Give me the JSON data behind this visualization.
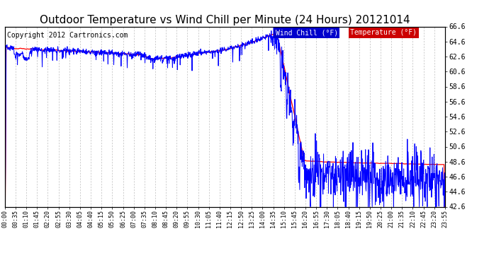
{
  "title": "Outdoor Temperature vs Wind Chill per Minute (24 Hours) 20121014",
  "copyright": "Copyright 2012 Cartronics.com",
  "legend_wind_chill": "Wind Chill (°F)",
  "legend_temperature": "Temperature (°F)",
  "ylim": [
    42.6,
    66.6
  ],
  "yticks": [
    42.6,
    44.6,
    46.6,
    48.6,
    50.6,
    52.6,
    54.6,
    56.6,
    58.6,
    60.6,
    62.6,
    64.6,
    66.6
  ],
  "temp_color": "#FF0000",
  "wind_color": "#0000FF",
  "title_fontsize": 11,
  "copyright_fontsize": 7,
  "bg_color": "#FFFFFF",
  "grid_color": "#AAAAAA",
  "n_points": 1440,
  "xtick_labels": [
    "00:00",
    "00:35",
    "01:10",
    "01:45",
    "02:20",
    "02:55",
    "03:30",
    "04:05",
    "04:40",
    "05:15",
    "05:50",
    "06:25",
    "07:00",
    "07:35",
    "08:10",
    "08:45",
    "09:20",
    "09:55",
    "10:30",
    "11:05",
    "11:40",
    "12:15",
    "12:50",
    "13:25",
    "14:00",
    "14:35",
    "15:10",
    "15:45",
    "16:20",
    "16:55",
    "17:30",
    "18:05",
    "18:40",
    "19:15",
    "19:50",
    "20:25",
    "21:00",
    "21:35",
    "22:10",
    "22:45",
    "23:20",
    "23:55"
  ]
}
